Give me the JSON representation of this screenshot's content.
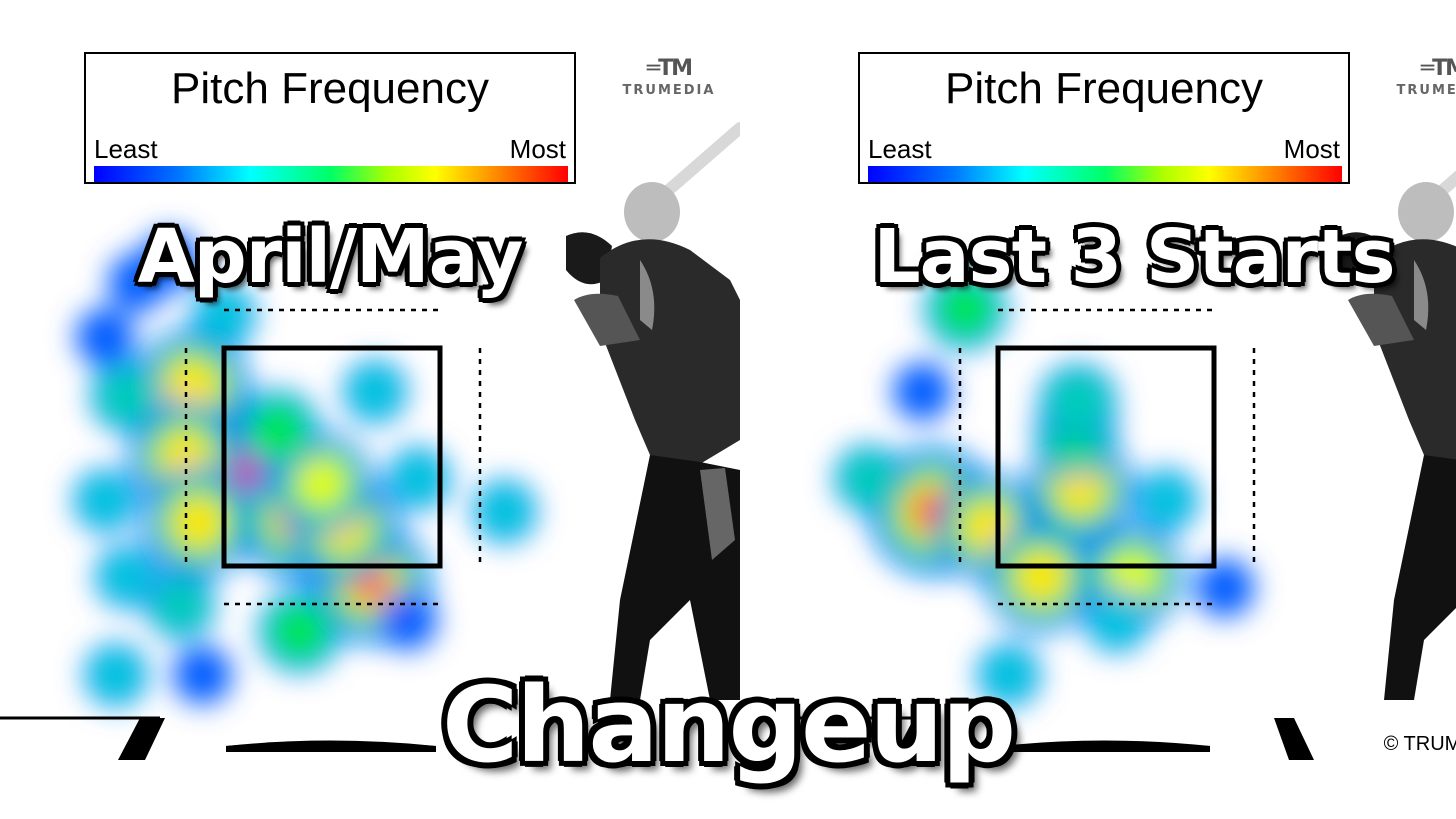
{
  "legend": {
    "title": "Pitch Frequency",
    "least_label": "Least",
    "most_label": "Most"
  },
  "brand": {
    "name": "TRUMEDIA",
    "copyright": "© TRUMEDIA"
  },
  "main_title": "Changeup",
  "colors": {
    "scale": [
      "#0000ff",
      "#00ffff",
      "#00ff00",
      "#ffff00",
      "#ff0000"
    ],
    "zone_line": "#000000"
  },
  "chart_data": [
    {
      "type": "heatmap",
      "title": "April/May",
      "metric": "Pitch Frequency",
      "scale": [
        "Least",
        "Most"
      ],
      "hotspots": [
        {
          "zone_x": 0.1,
          "zone_y": 0.55,
          "intensity": 1.0
        },
        {
          "zone_x": 0.35,
          "zone_y": 0.78,
          "intensity": 0.95
        },
        {
          "zone_x": 0.68,
          "zone_y": 1.08,
          "intensity": 0.9
        },
        {
          "zone_x": -0.15,
          "zone_y": 0.18,
          "intensity": 0.85
        },
        {
          "zone_x": -0.18,
          "zone_y": 0.5,
          "intensity": 0.8
        },
        {
          "zone_x": -0.12,
          "zone_y": 0.8,
          "intensity": 0.8
        },
        {
          "zone_x": 0.55,
          "zone_y": 0.82,
          "intensity": 0.8
        },
        {
          "zone_x": 0.45,
          "zone_y": 0.62,
          "intensity": 0.7
        },
        {
          "zone_x": 0.25,
          "zone_y": 0.38,
          "intensity": 0.5
        },
        {
          "zone_x": -0.45,
          "zone_y": 0.22,
          "intensity": 0.4
        },
        {
          "zone_x": 0.35,
          "zone_y": 1.3,
          "intensity": 0.5
        },
        {
          "zone_x": -0.2,
          "zone_y": 1.18,
          "intensity": 0.35
        },
        {
          "zone_x": -0.55,
          "zone_y": 0.7,
          "intensity": 0.3
        },
        {
          "zone_x": -0.45,
          "zone_y": 1.05,
          "intensity": 0.3
        },
        {
          "zone_x": -0.5,
          "zone_y": 1.5,
          "intensity": 0.3
        },
        {
          "zone_x": -0.1,
          "zone_y": 1.5,
          "intensity": 0.25
        },
        {
          "zone_x": 0.9,
          "zone_y": 0.6,
          "intensity": 0.3
        },
        {
          "zone_x": 1.3,
          "zone_y": 0.75,
          "intensity": 0.3
        },
        {
          "zone_x": 0.7,
          "zone_y": 0.2,
          "intensity": 0.3
        },
        {
          "zone_x": 0.85,
          "zone_y": 1.25,
          "intensity": 0.25
        },
        {
          "zone_x": -0.4,
          "zone_y": -0.3,
          "intensity": 0.25
        },
        {
          "zone_x": 0.0,
          "zone_y": -0.15,
          "intensity": 0.3
        },
        {
          "zone_x": -0.25,
          "zone_y": -0.4,
          "intensity": 0.25
        },
        {
          "zone_x": -0.55,
          "zone_y": -0.05,
          "intensity": 0.25
        }
      ]
    },
    {
      "type": "heatmap",
      "title": "Last 3 Starts",
      "metric": "Pitch Frequency",
      "scale": [
        "Least",
        "Most"
      ],
      "hotspots": [
        {
          "zone_x": -0.3,
          "zone_y": 0.75,
          "intensity": 1.0
        },
        {
          "zone_x": -0.05,
          "zone_y": 0.82,
          "intensity": 0.75
        },
        {
          "zone_x": 0.2,
          "zone_y": 1.05,
          "intensity": 0.8
        },
        {
          "zone_x": 0.62,
          "zone_y": 1.05,
          "intensity": 0.7
        },
        {
          "zone_x": 0.38,
          "zone_y": 0.65,
          "intensity": 0.75
        },
        {
          "zone_x": 0.36,
          "zone_y": 0.4,
          "intensity": 0.5
        },
        {
          "zone_x": 0.37,
          "zone_y": 0.25,
          "intensity": 0.45
        },
        {
          "zone_x": -0.15,
          "zone_y": -0.18,
          "intensity": 0.5
        },
        {
          "zone_x": -0.6,
          "zone_y": 0.6,
          "intensity": 0.35
        },
        {
          "zone_x": 0.78,
          "zone_y": 0.7,
          "intensity": 0.3
        },
        {
          "zone_x": 0.55,
          "zone_y": 1.25,
          "intensity": 0.3
        },
        {
          "zone_x": 0.05,
          "zone_y": 1.5,
          "intensity": 0.3
        },
        {
          "zone_x": -0.35,
          "zone_y": 0.2,
          "intensity": 0.25
        },
        {
          "zone_x": 1.05,
          "zone_y": 1.1,
          "intensity": 0.25
        }
      ]
    }
  ]
}
